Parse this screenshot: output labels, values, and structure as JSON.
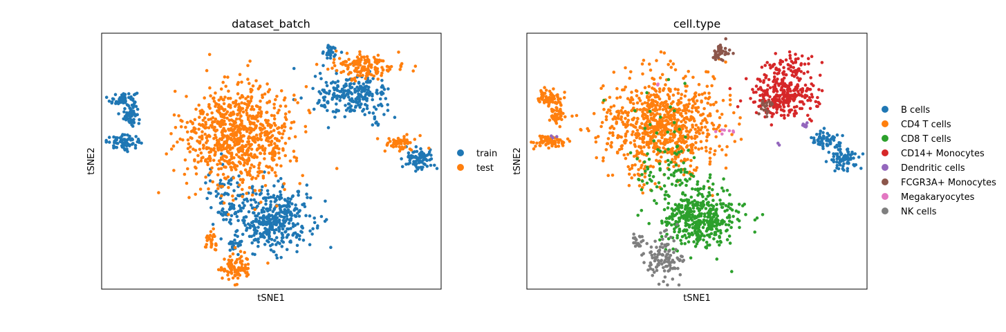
{
  "chart_data": [
    {
      "type": "scatter",
      "title": "dataset_batch",
      "xlabel": "tSNE1",
      "ylabel": "tSNE2",
      "grid": false,
      "legend_placement": "right",
      "series": [
        {
          "name": "train",
          "color": "#1f77b4",
          "clusters": [
            {
              "cx": 4.5,
              "cy": 23.0,
              "sx": 2.0,
              "sy": 1.2,
              "n": 70
            },
            {
              "cx": 6.5,
              "cy": 18.5,
              "sx": 1.0,
              "sy": 1.4,
              "n": 45
            },
            {
              "cx": 4.5,
              "cy": 11.0,
              "sx": 2.5,
              "sy": 0.9,
              "n": 70
            },
            {
              "cx": 49.0,
              "cy": -11.0,
              "sx": 5.5,
              "sy": 4.5,
              "n": 380
            },
            {
              "cx": 35.0,
              "cy": -5.0,
              "sx": 3.0,
              "sy": 4.5,
              "n": 80
            },
            {
              "cx": 37.5,
              "cy": -18.0,
              "sx": 1.5,
              "sy": 1.5,
              "n": 25
            },
            {
              "cx": 72.0,
              "cy": 24.0,
              "sx": 5.5,
              "sy": 3.0,
              "n": 230
            },
            {
              "cx": 65.5,
              "cy": 36.5,
              "sx": 1.2,
              "sy": 1.0,
              "n": 30
            },
            {
              "cx": 91.5,
              "cy": 6.0,
              "sx": 2.2,
              "sy": 1.5,
              "n": 80
            },
            {
              "cx": 79.0,
              "cy": 16.0,
              "sx": 0.5,
              "sy": 0.5,
              "n": 5
            }
          ]
        },
        {
          "name": "test",
          "color": "#ff7f0e",
          "clusters": [
            {
              "cx": 38.5,
              "cy": 13.0,
              "sx": 8.0,
              "sy": 7.0,
              "n": 800
            },
            {
              "cx": 37.5,
              "cy": -25.0,
              "sx": 2.5,
              "sy": 2.0,
              "n": 90
            },
            {
              "cx": 30.0,
              "cy": -17.5,
              "sx": 1.0,
              "sy": 1.5,
              "n": 25
            },
            {
              "cx": 75.0,
              "cy": 32.5,
              "sx": 4.5,
              "sy": 1.8,
              "n": 150
            },
            {
              "cx": 86.5,
              "cy": 10.8,
              "sx": 2.5,
              "sy": 1.2,
              "n": 60
            }
          ]
        }
      ]
    },
    {
      "type": "scatter",
      "title": "cell.type",
      "xlabel": "tSNE1",
      "ylabel": "tSNE2",
      "grid": false,
      "legend_placement": "right",
      "series": [
        {
          "name": "B cells",
          "color": "#1f77b4",
          "clusters": [
            {
              "cx": 86.0,
              "cy": 11.5,
              "sx": 2.2,
              "sy": 1.3,
              "n": 65
            },
            {
              "cx": 91.5,
              "cy": 6.0,
              "sx": 2.2,
              "sy": 1.5,
              "n": 75
            }
          ]
        },
        {
          "name": "CD4 T cells",
          "color": "#ff7f0e",
          "clusters": [
            {
              "cx": 37.5,
              "cy": 16.0,
              "sx": 8.5,
              "sy": 7.0,
              "n": 820
            },
            {
              "cx": 4.5,
              "cy": 23.5,
              "sx": 2.0,
              "sy": 1.2,
              "n": 70
            },
            {
              "cx": 6.5,
              "cy": 18.5,
              "sx": 1.0,
              "sy": 1.4,
              "n": 45
            },
            {
              "cx": 4.5,
              "cy": 11.0,
              "sx": 2.5,
              "sy": 0.9,
              "n": 70
            }
          ]
        },
        {
          "name": "CD8 T cells",
          "color": "#2ca02c",
          "clusters": [
            {
              "cx": 48.5,
              "cy": -11.0,
              "sx": 5.5,
              "sy": 4.0,
              "n": 420
            },
            {
              "cx": 40.0,
              "cy": 2.0,
              "sx": 5.5,
              "sy": 4.0,
              "n": 80
            },
            {
              "cx": 38.5,
              "cy": 13.0,
              "sx": 8.0,
              "sy": 7.0,
              "n": 20
            }
          ]
        },
        {
          "name": "CD14+ Monocytes",
          "color": "#d62728",
          "clusters": [
            {
              "cx": 73.0,
              "cy": 24.0,
              "sx": 5.0,
              "sy": 3.0,
              "n": 280
            },
            {
              "cx": 75.0,
              "cy": 32.5,
              "sx": 3.5,
              "sy": 1.8,
              "n": 70
            }
          ]
        },
        {
          "name": "Dendritic cells",
          "color": "#9467bd",
          "clusters": [
            {
              "cx": 80.0,
              "cy": 16.0,
              "sx": 0.6,
              "sy": 0.4,
              "n": 7
            },
            {
              "cx": 72.0,
              "cy": 11.0,
              "sx": 0.5,
              "sy": 0.5,
              "n": 2
            },
            {
              "cx": 5.5,
              "cy": 12.0,
              "sx": 1.0,
              "sy": 0.5,
              "n": 3
            }
          ]
        },
        {
          "name": "FCGR3A+ Monocytes",
          "color": "#8c564b",
          "clusters": [
            {
              "cx": 55.0,
              "cy": 36.5,
              "sx": 1.5,
              "sy": 1.0,
              "n": 40
            },
            {
              "cx": 68.0,
              "cy": 21.0,
              "sx": 1.5,
              "sy": 1.2,
              "n": 20
            }
          ]
        },
        {
          "name": "Megakaryocytes",
          "color": "#e377c2",
          "clusters": [
            {
              "cx": 56.0,
              "cy": 14.0,
              "sx": 2.0,
              "sy": 0.6,
              "n": 7
            },
            {
              "cx": 36.5,
              "cy": 27.5,
              "sx": 0.3,
              "sy": 0.3,
              "n": 2
            }
          ]
        },
        {
          "name": "NK cells",
          "color": "#7f7f7f",
          "clusters": [
            {
              "cx": 38.0,
              "cy": -22.0,
              "sx": 2.8,
              "sy": 3.5,
              "n": 110
            },
            {
              "cx": 30.5,
              "cy": -17.0,
              "sx": 1.0,
              "sy": 1.0,
              "n": 20
            }
          ]
        }
      ]
    }
  ]
}
